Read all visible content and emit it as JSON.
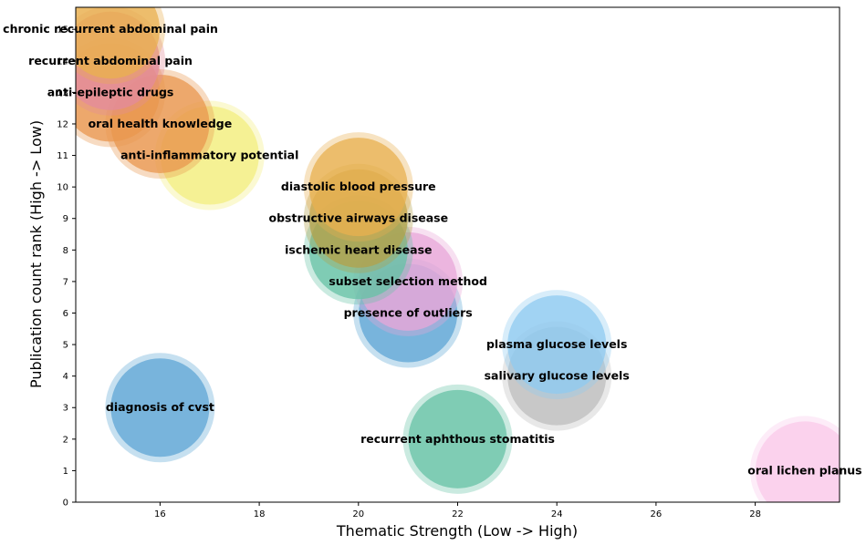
{
  "chart_data": {
    "type": "scatter",
    "title": "",
    "xlabel": "Thematic Strength (Low -> High)",
    "ylabel": "Publication count rank (High -> Low)",
    "xlim": [
      14.3,
      29.7
    ],
    "ylim": [
      0,
      15.7
    ],
    "xticks": [
      16,
      18,
      20,
      22,
      24,
      26,
      28
    ],
    "yticks": [
      0,
      1,
      2,
      3,
      4,
      5,
      6,
      7,
      8,
      9,
      10,
      11,
      12,
      13,
      14,
      15
    ],
    "grid": false,
    "legend": "none",
    "points": [
      {
        "label": "oral lichen planus",
        "x": 29,
        "y": 1,
        "color": "#f9c9ea"
      },
      {
        "label": "recurrent aphthous stomatitis",
        "x": 22,
        "y": 2,
        "color": "#66c2a5"
      },
      {
        "label": "diagnosis of cvst",
        "x": 16,
        "y": 3,
        "color": "#5da5d5"
      },
      {
        "label": "salivary glucose levels",
        "x": 24,
        "y": 4,
        "color": "#bdbdbd"
      },
      {
        "label": "plasma glucose levels",
        "x": 24,
        "y": 5,
        "color": "#8fcaf0"
      },
      {
        "label": "presence of outliers",
        "x": 21,
        "y": 6,
        "color": "#5da5d5"
      },
      {
        "label": "subset selection method",
        "x": 21,
        "y": 7,
        "color": "#e8a7d8"
      },
      {
        "label": "ischemic heart disease",
        "x": 20,
        "y": 8,
        "color": "#66c2a5"
      },
      {
        "label": "obstructive airways disease",
        "x": 20,
        "y": 9,
        "color": "#b3a14a"
      },
      {
        "label": "diastolic blood pressure",
        "x": 20,
        "y": 10,
        "color": "#e8b04f"
      },
      {
        "label": "anti-inflammatory potential",
        "x": 17,
        "y": 11,
        "color": "#f3ee7f"
      },
      {
        "label": "oral health knowledge",
        "x": 16,
        "y": 12,
        "color": "#e9974f"
      },
      {
        "label": "anti-epileptic drugs",
        "x": 15,
        "y": 13,
        "color": "#e9974f"
      },
      {
        "label": "recurrent abdominal pain",
        "x": 15,
        "y": 14,
        "color": "#e38b9c"
      },
      {
        "label": "chronic recurrent abdominal pain",
        "x": 15,
        "y": 15,
        "color": "#e9b04f"
      }
    ]
  }
}
